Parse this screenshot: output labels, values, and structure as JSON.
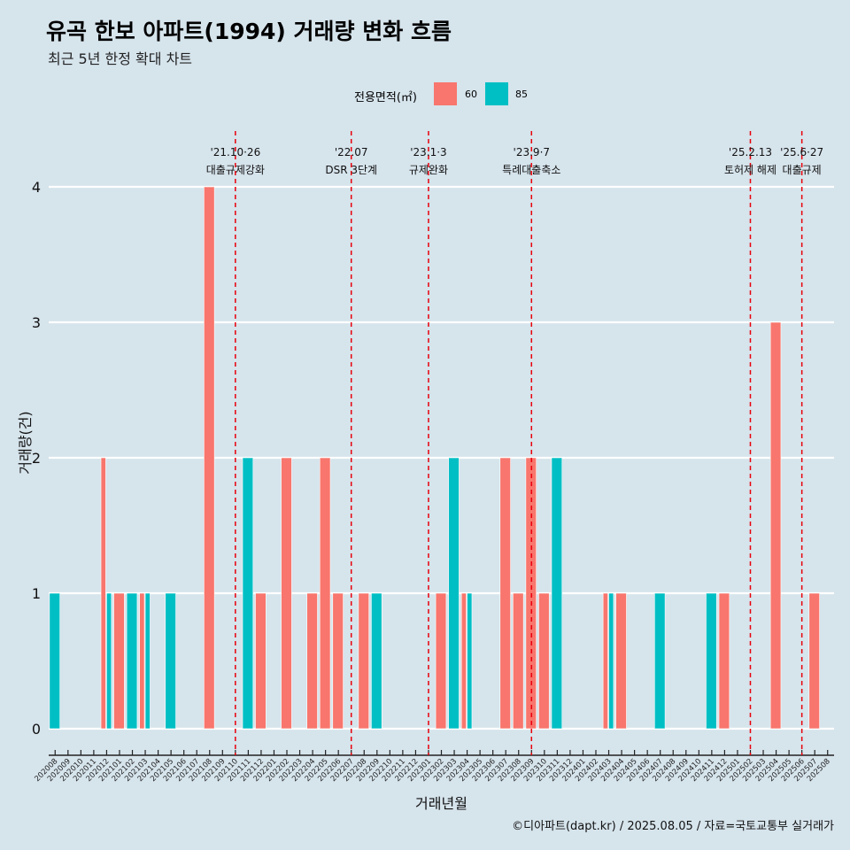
{
  "title": "유곡 한보 아파트(1994) 거래량 변화 흐름",
  "subtitle": "최근 5년 한정 확대 차트",
  "caption": "©디아파트(dapt.kr) / 2025.08.05 / 자료=국토교통부 실거래가",
  "legend": {
    "title": "전용면적(㎡)",
    "items": [
      {
        "label": "60",
        "color": "#f8766d"
      },
      {
        "label": "85",
        "color": "#00bfc4"
      }
    ]
  },
  "chart_data": {
    "type": "bar",
    "xlabel": "거래년월",
    "ylabel": "거래량(건)",
    "ylim": [
      0,
      4
    ],
    "yticks": [
      0,
      1,
      2,
      3,
      4
    ],
    "grid": "horizontal",
    "legend_position": "top",
    "categories": [
      "202008",
      "202009",
      "202010",
      "202011",
      "202012",
      "202101",
      "202102",
      "202103",
      "202104",
      "202105",
      "202106",
      "202107",
      "202108",
      "202109",
      "202110",
      "202111",
      "202112",
      "202201",
      "202202",
      "202203",
      "202204",
      "202205",
      "202206",
      "202207",
      "202208",
      "202209",
      "202210",
      "202211",
      "202212",
      "202301",
      "202302",
      "202303",
      "202304",
      "202305",
      "202306",
      "202307",
      "202308",
      "202309",
      "202310",
      "202311",
      "202312",
      "202401",
      "202402",
      "202403",
      "202404",
      "202405",
      "202406",
      "202407",
      "202408",
      "202409",
      "202410",
      "202411",
      "202412",
      "202501",
      "202502",
      "202503",
      "202504",
      "202505",
      "202506",
      "202507",
      "202508"
    ],
    "series": [
      {
        "name": "60",
        "color": "#f8766d",
        "values": [
          0,
          0,
          0,
          0,
          2,
          1,
          0,
          1,
          0,
          0,
          0,
          0,
          4,
          0,
          0,
          0,
          1,
          0,
          2,
          0,
          1,
          2,
          1,
          0,
          1,
          0,
          0,
          0,
          0,
          0,
          1,
          0,
          1,
          0,
          0,
          2,
          1,
          2,
          1,
          0,
          0,
          0,
          0,
          1,
          1,
          0,
          0,
          0,
          0,
          0,
          0,
          0,
          1,
          0,
          0,
          0,
          3,
          0,
          0,
          1,
          0
        ]
      },
      {
        "name": "85",
        "color": "#00bfc4",
        "values": [
          1,
          0,
          0,
          0,
          1,
          0,
          1,
          1,
          0,
          1,
          0,
          0,
          0,
          0,
          0,
          2,
          0,
          0,
          0,
          0,
          0,
          0,
          0,
          0,
          0,
          1,
          0,
          0,
          0,
          0,
          0,
          2,
          1,
          0,
          0,
          0,
          0,
          0,
          0,
          2,
          0,
          0,
          0,
          1,
          0,
          0,
          0,
          1,
          0,
          0,
          0,
          1,
          0,
          0,
          0,
          0,
          0,
          0,
          0,
          0,
          0
        ]
      }
    ],
    "annotations": [
      {
        "date": "'21.10·26",
        "label": "대출규제강화",
        "month": "202110"
      },
      {
        "date": "'22.07",
        "label": "DSR 3단계",
        "month": "202207"
      },
      {
        "date": "'23.1·3",
        "label": "규제완화",
        "month": "202301"
      },
      {
        "date": "'23.9·7",
        "label": "특례대출축소",
        "month": "202309"
      },
      {
        "date": "'25.2.13",
        "label": "토허제 해제",
        "month": "202502"
      },
      {
        "date": "'25.6·27",
        "label": "대출규제",
        "month": "202506"
      }
    ]
  }
}
